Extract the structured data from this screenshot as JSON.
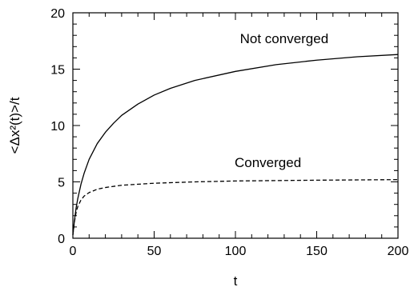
{
  "chart_data": {
    "type": "line",
    "title": "",
    "xlabel": "t",
    "ylabel": "<Δx²(t)>/t",
    "xlim": [
      0,
      200
    ],
    "ylim": [
      0,
      20
    ],
    "xticks": [
      0,
      50,
      100,
      150,
      200
    ],
    "yticks": [
      0,
      5,
      10,
      15,
      20
    ],
    "grid": false,
    "series": [
      {
        "label_text": "Not converged",
        "style": "solid",
        "color": "#000000",
        "points": [
          [
            0,
            0.3
          ],
          [
            1,
            1.6
          ],
          [
            2,
            2.7
          ],
          [
            3,
            3.5
          ],
          [
            5,
            4.8
          ],
          [
            7,
            5.8
          ],
          [
            10,
            7.0
          ],
          [
            15,
            8.4
          ],
          [
            20,
            9.4
          ],
          [
            25,
            10.2
          ],
          [
            30,
            10.9
          ],
          [
            40,
            11.9
          ],
          [
            50,
            12.7
          ],
          [
            60,
            13.3
          ],
          [
            75,
            14.0
          ],
          [
            100,
            14.8
          ],
          [
            125,
            15.4
          ],
          [
            150,
            15.8
          ],
          [
            175,
            16.1
          ],
          [
            200,
            16.3
          ]
        ]
      },
      {
        "label_text": "Converged",
        "style": "dashed",
        "color": "#000000",
        "points": [
          [
            0,
            0.3
          ],
          [
            1,
            1.5
          ],
          [
            2,
            2.3
          ],
          [
            3,
            2.8
          ],
          [
            5,
            3.4
          ],
          [
            7,
            3.75
          ],
          [
            10,
            4.05
          ],
          [
            15,
            4.35
          ],
          [
            20,
            4.5
          ],
          [
            30,
            4.7
          ],
          [
            50,
            4.88
          ],
          [
            75,
            5.0
          ],
          [
            100,
            5.08
          ],
          [
            150,
            5.15
          ],
          [
            200,
            5.2
          ]
        ]
      }
    ],
    "annotations": [
      {
        "text": "Not converged",
        "x": 130,
        "y": 17.3
      },
      {
        "text": "Converged",
        "x": 120,
        "y": 6.3
      }
    ]
  }
}
